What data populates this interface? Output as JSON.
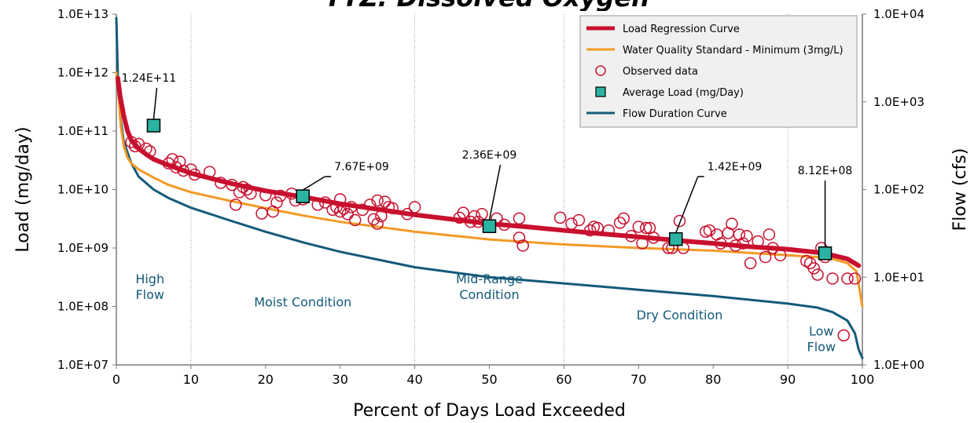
{
  "chart_data": {
    "type": "line",
    "title": "",
    "xlabel": "Percent of Days Load Exceeded",
    "ylabel_left": "Load (mg/day)",
    "ylabel_right": "Flow (cfs)",
    "xlim": [
      0,
      100
    ],
    "x_ticks": [
      "0",
      "10",
      "20",
      "30",
      "40",
      "50",
      "60",
      "70",
      "80",
      "90",
      "100"
    ],
    "y_left_log": true,
    "y_left_range": [
      10000000.0,
      10000000000000.0
    ],
    "y_left_ticks": [
      "1.0E+07",
      "1.0E+08",
      "1.0E+09",
      "1.0E+10",
      "1.0E+11",
      "1.0E+12",
      "1.0E+13"
    ],
    "y_right_log": true,
    "y_right_range": [
      1,
      10000
    ],
    "y_right_ticks": [
      "1.0E+00",
      "1.0E+01",
      "1.0E+02",
      "1.0E+03",
      "1.0E+04"
    ],
    "grid": "vertical dotted lines at 10, 40, 60, 90",
    "legend_position": "top-right",
    "series": [
      {
        "name": "Load Regression Curve",
        "color": "#c8102e",
        "axis": "left",
        "x": [
          0.2,
          0.5,
          1,
          1.5,
          2,
          3,
          4,
          5,
          7,
          10,
          15,
          20,
          25,
          30,
          35,
          40,
          45,
          50,
          55,
          60,
          65,
          70,
          75,
          80,
          85,
          90,
          94,
          96,
          98,
          99.5
        ],
        "y": [
          800000000000.0,
          400000000000.0,
          180000000000.0,
          100000000000.0,
          70000000000.0,
          50000000000.0,
          40000000000.0,
          33000000000.0,
          26000000000.0,
          19000000000.0,
          13000000000.0,
          9500000000.0,
          7500000000.0,
          5700000000.0,
          4600000000.0,
          3700000000.0,
          3100000000.0,
          2600000000.0,
          2300000000.0,
          2000000000.0,
          1750000000.0,
          1550000000.0,
          1350000000.0,
          1200000000.0,
          1050000000.0,
          950000000.0,
          840000000.0,
          750000000.0,
          650000000.0,
          500000000.0
        ]
      },
      {
        "name": "Water Quality Standard - Minimum (3mg/L)",
        "color": "#f39a25",
        "axis": "left",
        "x": [
          0,
          0.3,
          0.6,
          1,
          1.5,
          2,
          3,
          5,
          7,
          10,
          15,
          20,
          25,
          30,
          40,
          50,
          60,
          70,
          80,
          90,
          94,
          96,
          98,
          99.2,
          100
        ],
        "y": [
          1000000000000.0,
          400000000000.0,
          120000000000.0,
          55000000000.0,
          35000000000.0,
          28000000000.0,
          22000000000.0,
          16000000000.0,
          12000000000.0,
          9000000000.0,
          6500000000.0,
          4800000000.0,
          3600000000.0,
          2800000000.0,
          1900000000.0,
          1400000000.0,
          1150000000.0,
          1000000000.0,
          900000000.0,
          750000000.0,
          700000000.0,
          650000000.0,
          550000000.0,
          400000000.0,
          100000000.0
        ]
      },
      {
        "name": "Flow Duration Curve",
        "color": "#145a7a",
        "axis": "right",
        "x": [
          0,
          0.2,
          0.5,
          1,
          2,
          3,
          5,
          7,
          10,
          15,
          20,
          25,
          30,
          40,
          50,
          60,
          70,
          80,
          90,
          94,
          96,
          98,
          99,
          99.5,
          100
        ],
        "y": [
          9000,
          2000,
          700,
          350,
          200,
          140,
          100,
          80,
          62,
          45,
          33,
          25,
          19.5,
          13,
          10,
          8.5,
          7.2,
          6.1,
          5.0,
          4.5,
          4.0,
          3.2,
          2.3,
          1.5,
          1.2
        ]
      }
    ],
    "observed_data": {
      "name": "Observed data",
      "color": "#c8102e",
      "x": [
        2,
        2.5,
        3,
        4,
        4.5,
        7,
        7.5,
        8,
        8.5,
        9,
        10,
        10.5,
        12.5,
        14,
        15.5,
        16,
        16.5,
        17,
        17.5,
        18,
        19.5,
        20,
        21,
        21.5,
        22,
        23.5,
        24,
        25,
        27,
        28,
        29,
        29.5,
        30,
        30,
        30.5,
        31,
        31.5,
        32,
        33,
        34,
        34.5,
        35,
        35,
        35.5,
        36,
        36.5,
        37,
        39,
        40,
        46,
        46.5,
        47.5,
        48,
        48.5,
        49,
        51,
        52,
        54,
        54,
        54.5,
        59.5,
        61,
        62,
        63.5,
        64,
        64.5,
        66,
        67.5,
        68,
        69,
        70,
        70.5,
        71,
        71.5,
        72,
        74,
        74.5,
        75,
        75.5,
        76,
        79,
        79.5,
        80.5,
        81,
        82,
        82.5,
        83,
        83.5,
        84,
        84.5,
        85,
        86,
        87,
        87.5,
        88,
        89,
        92.5,
        93,
        93.5,
        94,
        94.5,
        95,
        96,
        97.5,
        98,
        99
      ],
      "y": [
        65000000000.0,
        55000000000.0,
        60000000000.0,
        50000000000.0,
        45000000000.0,
        28000000000.0,
        33000000000.0,
        24000000000.0,
        30000000000.0,
        21000000000.0,
        22000000000.0,
        18000000000.0,
        20000000000.0,
        13000000000.0,
        12000000000.0,
        5500000000.0,
        9000000000.0,
        11000000000.0,
        10000000000.0,
        8500000000.0,
        3900000000.0,
        8000000000.0,
        4200000000.0,
        6000000000.0,
        7800000000.0,
        8500000000.0,
        6500000000.0,
        6800000000.0,
        5500000000.0,
        6000000000.0,
        4500000000.0,
        5000000000.0,
        4200000000.0,
        6800000000.0,
        4700000000.0,
        3800000000.0,
        5000000000.0,
        3000000000.0,
        4500000000.0,
        5500000000.0,
        3100000000.0,
        6500000000.0,
        2600000000.0,
        3500000000.0,
        6200000000.0,
        5000000000.0,
        4800000000.0,
        3800000000.0,
        5000000000.0,
        3300000000.0,
        4000000000.0,
        2800000000.0,
        3500000000.0,
        2800000000.0,
        3800000000.0,
        3200000000.0,
        2500000000.0,
        3200000000.0,
        1500000000.0,
        1100000000.0,
        3300000000.0,
        2600000000.0,
        3000000000.0,
        2000000000.0,
        2300000000.0,
        2200000000.0,
        2000000000.0,
        2700000000.0,
        3200000000.0,
        1600000000.0,
        2300000000.0,
        1200000000.0,
        2200000000.0,
        2200000000.0,
        1500000000.0,
        1000000000.0,
        1000000000.0,
        1400000000.0,
        2900000000.0,
        1000000000.0,
        1900000000.0,
        2000000000.0,
        1700000000.0,
        1200000000.0,
        1800000000.0,
        2600000000.0,
        1100000000.0,
        1700000000.0,
        1200000000.0,
        1600000000.0,
        550000000.0,
        1300000000.0,
        700000000.0,
        1700000000.0,
        1000000000.0,
        750000000.0,
        600000000.0,
        550000000.0,
        450000000.0,
        350000000.0,
        1000000000.0,
        700000000.0,
        300000000.0,
        32000000.0,
        300000000.0,
        300000000.0
      ]
    },
    "average_load": {
      "name": "Average Load (mg/Day)",
      "fill": "#2ab3a3",
      "x": [
        5,
        25,
        50,
        75,
        95
      ],
      "y": [
        124000000000.0,
        7670000000.0,
        2360000000.0,
        1420000000.0,
        812000000.0
      ],
      "labels": [
        "1.24E+11",
        "7.67E+09",
        "2.36E+09",
        "1.42E+09",
        "8.12E+08"
      ]
    },
    "annotations": [
      {
        "text": "High\nFlow",
        "x": 4.5,
        "y": 250000000.0,
        "color": "#145a7a"
      },
      {
        "text": "Moist Condition",
        "x": 25,
        "y": 100000000.0,
        "color": "#145a7a"
      },
      {
        "text": "Mid-Range\nCondition",
        "x": 50,
        "y": 250000000.0,
        "color": "#145a7a"
      },
      {
        "text": "Dry Condition",
        "x": 75.5,
        "y": 60000000.0,
        "color": "#145a7a"
      },
      {
        "text": "Low\nFlow",
        "x": 94.5,
        "y": 32000000.0,
        "color": "#145a7a"
      }
    ],
    "title_fragment": "TTZ: Dissolved Oxygen"
  }
}
